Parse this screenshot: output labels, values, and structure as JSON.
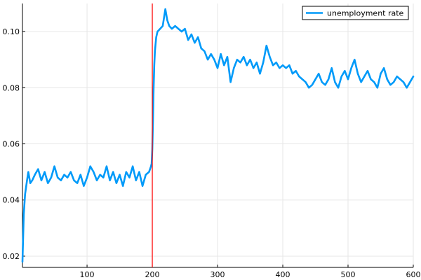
{
  "chart_data": {
    "type": "line",
    "title": "",
    "xlabel": "",
    "ylabel": "",
    "xlim": [
      1,
      600
    ],
    "ylim": [
      0.016,
      0.11
    ],
    "x_ticks": [
      100,
      200,
      300,
      400,
      500,
      600
    ],
    "y_ticks": [
      0.02,
      0.04,
      0.06,
      0.08,
      0.1
    ],
    "x_tick_labels": [
      "100",
      "200",
      "300",
      "400",
      "500",
      "600"
    ],
    "y_tick_labels": [
      "0.02",
      "0.04",
      "0.06",
      "0.08",
      "0.10"
    ],
    "grid": true,
    "legend_position": "top-right",
    "series": [
      {
        "name": "unemployment rate",
        "color": "#009af9",
        "x": [
          1,
          3,
          5,
          8,
          10,
          13,
          16,
          20,
          25,
          30,
          35,
          40,
          45,
          50,
          55,
          60,
          65,
          70,
          75,
          80,
          85,
          90,
          95,
          100,
          105,
          110,
          115,
          120,
          125,
          130,
          135,
          140,
          145,
          150,
          155,
          160,
          165,
          170,
          175,
          180,
          185,
          190,
          195,
          198,
          199,
          200,
          201,
          202,
          203,
          204,
          206,
          208,
          212,
          216,
          220,
          223,
          226,
          230,
          235,
          240,
          245,
          250,
          255,
          260,
          265,
          270,
          275,
          280,
          285,
          290,
          295,
          300,
          305,
          310,
          315,
          320,
          325,
          330,
          335,
          340,
          345,
          350,
          355,
          360,
          365,
          370,
          375,
          380,
          385,
          390,
          395,
          400,
          405,
          410,
          415,
          420,
          425,
          430,
          435,
          440,
          445,
          450,
          455,
          460,
          465,
          470,
          475,
          480,
          485,
          490,
          495,
          500,
          505,
          510,
          515,
          520,
          525,
          530,
          535,
          540,
          545,
          550,
          555,
          560,
          565,
          570,
          575,
          580,
          585,
          590,
          595,
          600
        ],
        "y": [
          0.018,
          0.035,
          0.042,
          0.047,
          0.05,
          0.046,
          0.047,
          0.049,
          0.051,
          0.047,
          0.05,
          0.046,
          0.048,
          0.052,
          0.048,
          0.047,
          0.049,
          0.048,
          0.05,
          0.047,
          0.046,
          0.049,
          0.045,
          0.048,
          0.052,
          0.05,
          0.047,
          0.049,
          0.048,
          0.052,
          0.047,
          0.05,
          0.046,
          0.049,
          0.045,
          0.05,
          0.048,
          0.052,
          0.047,
          0.05,
          0.045,
          0.049,
          0.05,
          0.052,
          0.053,
          0.058,
          0.068,
          0.08,
          0.088,
          0.093,
          0.098,
          0.1,
          0.101,
          0.102,
          0.108,
          0.104,
          0.102,
          0.101,
          0.102,
          0.101,
          0.1,
          0.101,
          0.097,
          0.099,
          0.096,
          0.098,
          0.094,
          0.093,
          0.09,
          0.092,
          0.09,
          0.087,
          0.092,
          0.088,
          0.091,
          0.082,
          0.087,
          0.09,
          0.089,
          0.091,
          0.088,
          0.09,
          0.087,
          0.089,
          0.085,
          0.089,
          0.095,
          0.091,
          0.088,
          0.089,
          0.087,
          0.088,
          0.087,
          0.088,
          0.085,
          0.086,
          0.084,
          0.083,
          0.082,
          0.08,
          0.081,
          0.083,
          0.085,
          0.082,
          0.081,
          0.083,
          0.087,
          0.082,
          0.08,
          0.084,
          0.086,
          0.083,
          0.087,
          0.09,
          0.085,
          0.082,
          0.084,
          0.086,
          0.083,
          0.082,
          0.08,
          0.085,
          0.087,
          0.083,
          0.081,
          0.082,
          0.084,
          0.083,
          0.082,
          0.08,
          0.082,
          0.084
        ]
      }
    ],
    "reference_lines": [
      {
        "axis": "x",
        "value": 200,
        "color": "#ff0000"
      }
    ]
  }
}
